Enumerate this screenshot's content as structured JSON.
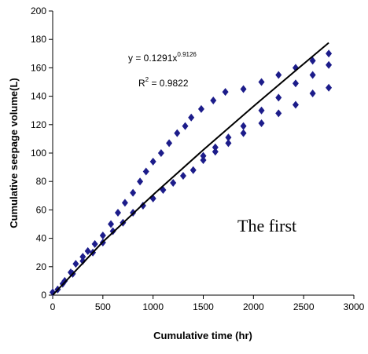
{
  "chart_data": {
    "type": "scatter",
    "xlabel": "Cumulative time (hr)",
    "ylabel": "Cumulative seepage volume(L)",
    "equation": {
      "base": "y = 0.1291x",
      "exponent": "0.9126"
    },
    "r_squared": {
      "base": "R",
      "exponent": "2",
      "rest": " = 0.9822"
    },
    "annotation": "The first",
    "xlim": [
      0,
      3000
    ],
    "xticks": [
      0,
      500,
      1000,
      1500,
      2000,
      2500,
      3000
    ],
    "ylim": [
      0,
      200
    ],
    "yticks": [
      0,
      20,
      40,
      60,
      80,
      100,
      120,
      140,
      160,
      180,
      200
    ],
    "series": [
      {
        "type": "scatter",
        "color": "#1c1c8a",
        "x": [
          0,
          50,
          100,
          120,
          180,
          200,
          230,
          300,
          300,
          350,
          400,
          420,
          500,
          500,
          580,
          600,
          650,
          700,
          720,
          800,
          800,
          870,
          900,
          930,
          1000,
          1000,
          1080,
          1100,
          1160,
          1200,
          1240,
          1300,
          1320,
          1380,
          1400,
          1480,
          1500,
          1500,
          1600,
          1620,
          1620,
          1720,
          1750,
          1750,
          1900,
          1900,
          1900,
          2080,
          2080,
          2080,
          2250,
          2250,
          2250,
          2420,
          2420,
          2420,
          2590,
          2590,
          2590,
          2750,
          2750,
          2750
        ],
        "values": [
          2,
          4,
          8,
          10,
          16,
          15,
          22,
          27,
          24,
          31,
          30,
          36,
          42,
          37,
          50,
          45,
          58,
          51,
          65,
          72,
          58,
          80,
          63,
          87,
          94,
          68,
          100,
          74,
          107,
          79,
          114,
          84,
          119,
          125,
          88,
          131,
          95,
          98,
          137,
          101,
          104,
          143,
          107,
          111,
          145,
          114,
          119,
          150,
          121,
          130,
          155,
          128,
          139,
          160,
          134,
          149,
          165,
          142,
          155,
          170,
          146,
          162
        ]
      },
      {
        "type": "line",
        "color": "#000000",
        "x": [
          0,
          500,
          1000,
          1500,
          2000,
          2500,
          2750
        ],
        "values": [
          0,
          37.5,
          70.6,
          102.2,
          132.9,
          162.8,
          177.6
        ]
      }
    ]
  }
}
